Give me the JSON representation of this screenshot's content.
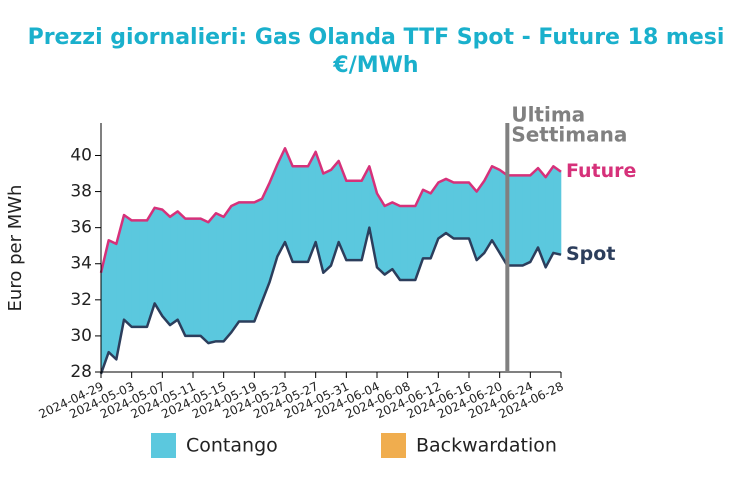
{
  "chart_data": {
    "type": "line",
    "title": "Prezzi giornalieri: Gas Olanda TTF Spot - Future 18 mesi",
    "subtitle": "€/MWh",
    "ylabel": "Euro per MWh",
    "x": [
      "2024-04-29",
      "2024-04-30",
      "2024-05-01",
      "2024-05-02",
      "2024-05-03",
      "2024-05-04",
      "2024-05-05",
      "2024-05-06",
      "2024-05-07",
      "2024-05-08",
      "2024-05-09",
      "2024-05-10",
      "2024-05-11",
      "2024-05-12",
      "2024-05-13",
      "2024-05-14",
      "2024-05-15",
      "2024-05-16",
      "2024-05-17",
      "2024-05-18",
      "2024-05-19",
      "2024-05-20",
      "2024-05-21",
      "2024-05-22",
      "2024-05-23",
      "2024-05-24",
      "2024-05-25",
      "2024-05-26",
      "2024-05-27",
      "2024-05-28",
      "2024-05-29",
      "2024-05-30",
      "2024-05-31",
      "2024-06-01",
      "2024-06-02",
      "2024-06-03",
      "2024-06-04",
      "2024-06-05",
      "2024-06-06",
      "2024-06-07",
      "2024-06-08",
      "2024-06-09",
      "2024-06-10",
      "2024-06-11",
      "2024-06-12",
      "2024-06-13",
      "2024-06-14",
      "2024-06-15",
      "2024-06-16",
      "2024-06-17",
      "2024-06-18",
      "2024-06-19",
      "2024-06-20",
      "2024-06-21",
      "2024-06-22",
      "2024-06-23",
      "2024-06-24",
      "2024-06-25",
      "2024-06-26",
      "2024-06-27",
      "2024-06-28"
    ],
    "series": [
      {
        "name": "Future",
        "color": "#d6317a",
        "values": [
          33.5,
          35.3,
          35.1,
          36.7,
          36.4,
          36.4,
          36.4,
          37.1,
          37.0,
          36.6,
          36.9,
          36.5,
          36.5,
          36.5,
          36.3,
          36.8,
          36.6,
          37.2,
          37.4,
          37.4,
          37.4,
          37.6,
          38.5,
          39.5,
          40.4,
          39.4,
          39.4,
          39.4,
          40.2,
          39.0,
          39.2,
          39.7,
          38.6,
          38.6,
          38.6,
          39.4,
          37.9,
          37.2,
          37.4,
          37.2,
          37.2,
          37.2,
          38.1,
          37.9,
          38.5,
          38.7,
          38.5,
          38.5,
          38.5,
          38.0,
          38.6,
          39.4,
          39.2,
          38.9,
          38.9,
          38.9,
          38.9,
          39.3,
          38.8,
          39.4,
          39.1
        ]
      },
      {
        "name": "Spot",
        "color": "#2c3e5c",
        "values": [
          27.9,
          29.1,
          28.7,
          30.9,
          30.5,
          30.5,
          30.5,
          31.8,
          31.1,
          30.6,
          30.9,
          30.0,
          30.0,
          30.0,
          29.6,
          29.7,
          29.7,
          30.2,
          30.8,
          30.8,
          30.8,
          31.9,
          33.0,
          34.4,
          35.2,
          34.1,
          34.1,
          34.1,
          35.2,
          33.5,
          33.9,
          35.2,
          34.2,
          34.2,
          34.2,
          36.0,
          33.8,
          33.4,
          33.7,
          33.1,
          33.1,
          33.1,
          34.3,
          34.3,
          35.4,
          35.7,
          35.4,
          35.4,
          35.4,
          34.2,
          34.6,
          35.3,
          34.6,
          33.9,
          33.9,
          33.9,
          34.1,
          34.9,
          33.8,
          34.6,
          34.5
        ]
      }
    ],
    "fill": [
      {
        "name": "Contango",
        "color": "#5bc8de"
      },
      {
        "name": "Backwardation",
        "color": "#f0ad4e"
      }
    ],
    "xlim": [
      "2024-04-29",
      "2024-06-28"
    ],
    "xticks": [
      "2024-04-29",
      "2024-05-03",
      "2024-05-07",
      "2024-05-11",
      "2024-05-15",
      "2024-05-19",
      "2024-05-23",
      "2024-05-27",
      "2024-05-31",
      "2024-06-04",
      "2024-06-08",
      "2024-06-12",
      "2024-06-16",
      "2024-06-20",
      "2024-06-24",
      "2024-06-28"
    ],
    "ylim": [
      28,
      41.8
    ],
    "yticks": [
      28,
      30,
      32,
      34,
      36,
      38,
      40
    ],
    "annotation": {
      "x": "2024-06-21",
      "lines": [
        "Ultima",
        "Settimana"
      ],
      "color": "#808080"
    }
  }
}
